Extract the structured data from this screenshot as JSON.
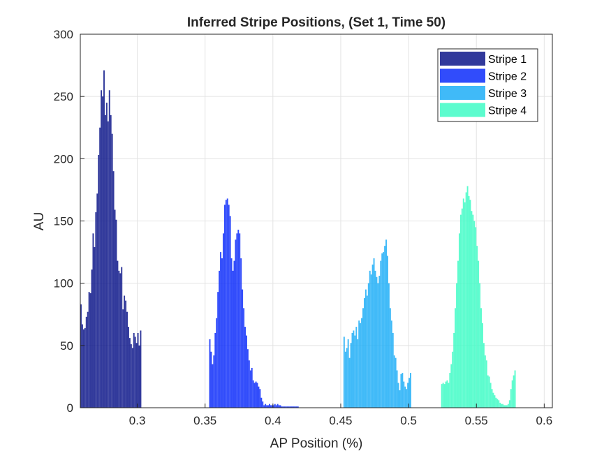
{
  "chart_data": {
    "type": "bar",
    "title": "Inferred Stripe Positions,  (Set 1, Time 50)",
    "xlabel": "AP Position (%)",
    "ylabel": "AU",
    "xlim": [
      0.258,
      0.606
    ],
    "ylim": [
      0,
      300
    ],
    "xticks": [
      "0.3",
      "0.35",
      "0.4",
      "0.45",
      "0.5",
      "0.55",
      "0.6"
    ],
    "yticks": [
      "0",
      "50",
      "100",
      "150",
      "200",
      "250",
      "300"
    ],
    "grid": true,
    "legend_position": "top-right",
    "bin_width": 0.001,
    "series": [
      {
        "name": "Stripe 1",
        "color": "#0d168a",
        "x_start": 0.258,
        "values": [
          83,
          67,
          63,
          64,
          73,
          77,
          93,
          92,
          111,
          140,
          129,
          157,
          172,
          203,
          225,
          255,
          250,
          271,
          235,
          245,
          230,
          255,
          235,
          220,
          190,
          159,
          151,
          118,
          110,
          108,
          113,
          79,
          90,
          86,
          77,
          65,
          56,
          51,
          48,
          60,
          57,
          52,
          60,
          50,
          62
        ]
      },
      {
        "name": "Stripe 2",
        "color": "#0d2dfa",
        "x_start": 0.353,
        "values": [
          55,
          45,
          35,
          42,
          60,
          72,
          93,
          110,
          125,
          120,
          140,
          163,
          167,
          168,
          163,
          154,
          120,
          110,
          118,
          135,
          140,
          143,
          140,
          120,
          95,
          80,
          65,
          58,
          47,
          38,
          30,
          32,
          22,
          20,
          21,
          20,
          17,
          15,
          8,
          5,
          2,
          3,
          2,
          2,
          3,
          2,
          2,
          2,
          3,
          2,
          3,
          2,
          2,
          1,
          1,
          1,
          1,
          1,
          1,
          1,
          1,
          1,
          1,
          1,
          1,
          1
        ]
      },
      {
        "name": "Stripe 3",
        "color": "#1eaef7",
        "x_start": 0.452,
        "values": [
          57,
          45,
          48,
          55,
          40,
          52,
          60,
          62,
          58,
          65,
          55,
          70,
          68,
          72,
          80,
          88,
          95,
          90,
          100,
          110,
          107,
          115,
          120,
          110,
          105,
          100,
          106,
          118,
          124,
          125,
          130,
          135,
          122,
          100,
          80,
          70,
          60,
          42,
          40,
          30,
          20,
          14,
          27,
          28,
          21,
          17,
          15,
          20,
          24,
          28
        ]
      },
      {
        "name": "Stripe 4",
        "color": "#3ffbc6",
        "x_start": 0.524,
        "values": [
          19,
          20,
          19,
          21,
          22,
          20,
          28,
          35,
          45,
          60,
          80,
          100,
          118,
          140,
          155,
          160,
          168,
          165,
          173,
          178,
          170,
          167,
          158,
          155,
          150,
          145,
          130,
          118,
          100,
          80,
          68,
          52,
          42,
          38,
          26,
          25,
          20,
          15,
          12,
          10,
          8,
          7,
          6,
          4,
          3,
          3,
          2,
          2,
          2,
          3,
          6,
          15,
          22,
          26,
          30
        ]
      }
    ]
  }
}
